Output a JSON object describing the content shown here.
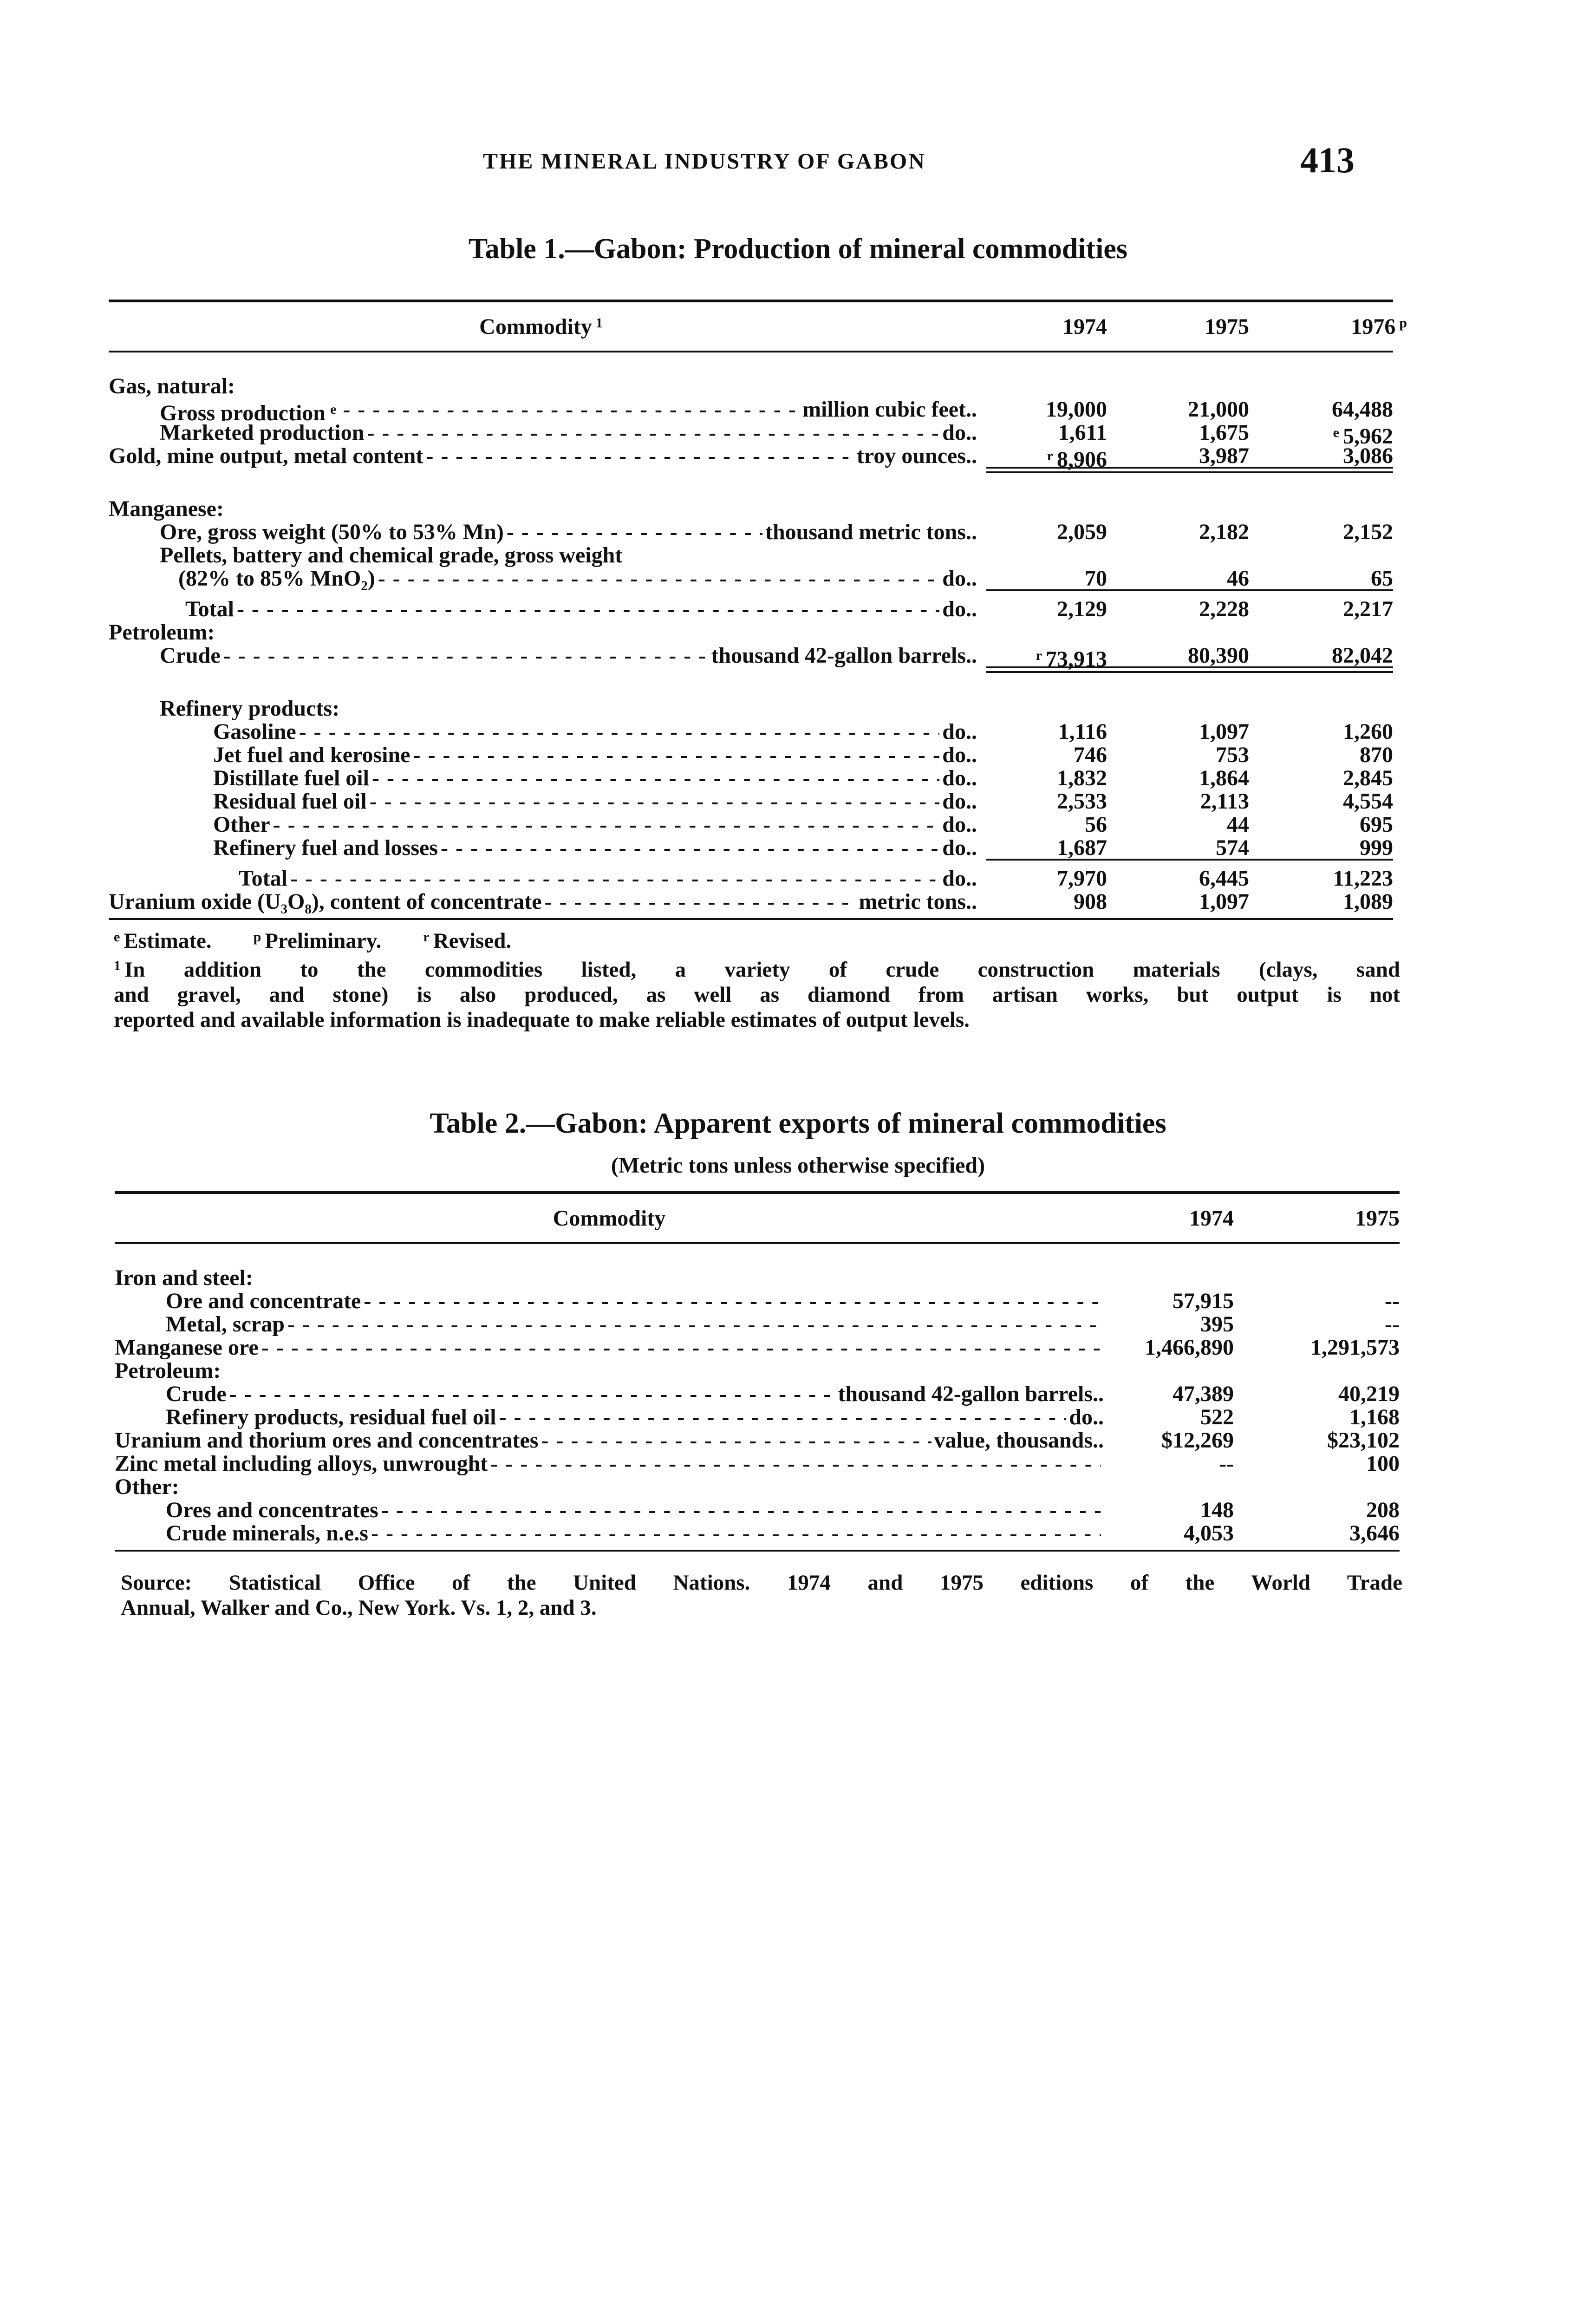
{
  "page": {
    "running_title": "THE MINERAL INDUSTRY OF GABON",
    "page_number": "413"
  },
  "table1": {
    "title": "Table 1.—Gabon:  Production of mineral commodities",
    "header": {
      "commodity": "Commodity",
      "commodity_sup": "1",
      "years": [
        "1974",
        "1975",
        "1976"
      ],
      "year_sups": [
        "",
        "",
        "p"
      ]
    },
    "groups": [
      {
        "rows": [
          {
            "label": "Gas, natural:",
            "indent": 0
          },
          {
            "label": "Gross production",
            "label_sup": "e",
            "indent": 1,
            "unit": "million cubic feet",
            "values": [
              "19,000",
              "21,000",
              "64,488"
            ]
          },
          {
            "label": "Marketed production",
            "indent": 1,
            "unit": "do",
            "values": [
              "1,611",
              "1,675",
              "e 5,962"
            ]
          },
          {
            "label": "Gold, mine output, metal content",
            "indent": 0,
            "unit": "troy ounces",
            "values": [
              "r 8,906",
              "3,987",
              "3,086"
            ],
            "rule": "double"
          }
        ]
      },
      {
        "rows": [
          {
            "label": "Manganese:",
            "indent": 0
          },
          {
            "label": "Ore, gross weight (50% to 53% Mn)",
            "indent": 1,
            "unit": "thousand metric tons",
            "values": [
              "2,059",
              "2,182",
              "2,152"
            ]
          },
          {
            "label": "Pellets, battery and chemical grade, gross weight",
            "indent": 1
          },
          {
            "label": "(82% to 85% MnO₂)",
            "indent": 2,
            "unit": "do",
            "values": [
              "70",
              "46",
              "65"
            ],
            "rule": "single"
          },
          {
            "label": "Total",
            "indent": 3,
            "unit": "do",
            "values": [
              "2,129",
              "2,228",
              "2,217"
            ]
          },
          {
            "label": "Petroleum:",
            "indent": 0
          },
          {
            "label": "Crude",
            "indent": 1,
            "unit": "thousand 42-gallon barrels",
            "values": [
              "r 73,913",
              "80,390",
              "82,042"
            ],
            "rule": "double"
          }
        ]
      },
      {
        "rows": [
          {
            "label": "Refinery products:",
            "indent": 1
          },
          {
            "label": "Gasoline",
            "indent": 4,
            "unit": "do",
            "values": [
              "1,116",
              "1,097",
              "1,260"
            ]
          },
          {
            "label": "Jet fuel and kerosine",
            "indent": 4,
            "unit": "do",
            "values": [
              "746",
              "753",
              "870"
            ]
          },
          {
            "label": "Distillate fuel oil",
            "indent": 4,
            "unit": "do",
            "values": [
              "1,832",
              "1,864",
              "2,845"
            ]
          },
          {
            "label": "Residual fuel oil",
            "indent": 4,
            "unit": "do",
            "values": [
              "2,533",
              "2,113",
              "4,554"
            ]
          },
          {
            "label": "Other",
            "indent": 4,
            "unit": "do",
            "values": [
              "56",
              "44",
              "695"
            ]
          },
          {
            "label": "Refinery fuel and losses",
            "indent": 4,
            "unit": "do",
            "values": [
              "1,687",
              "574",
              "999"
            ],
            "rule": "single"
          },
          {
            "label": "Total",
            "indent": 5,
            "unit": "do",
            "values": [
              "7,970",
              "6,445",
              "11,223"
            ]
          },
          {
            "label": "Uranium oxide (U₃O₈), content of concentrate",
            "indent": 0,
            "unit": "metric tons",
            "values": [
              "908",
              "1,097",
              "1,089"
            ]
          }
        ]
      }
    ],
    "footnotes": {
      "legend": [
        {
          "sup": "e",
          "text": "Estimate."
        },
        {
          "sup": "p",
          "text": "Preliminary."
        },
        {
          "sup": "r",
          "text": "Revised."
        }
      ],
      "note_sup": "1",
      "note_line1": "In addition to the commodities listed, a variety of crude construction materials (clays, sand",
      "note_line2": "and gravel, and stone) is also produced, as well as diamond from artisan works, but output is not",
      "note_line3": "reported and available information is inadequate to make reliable estimates of output levels."
    }
  },
  "table2": {
    "title": "Table 2.—Gabon:  Apparent exports of mineral commodities",
    "subtitle": "(Metric tons unless otherwise specified)",
    "header": {
      "commodity": "Commodity",
      "years": [
        "1974",
        "1975"
      ]
    },
    "groups": [
      {
        "rows": [
          {
            "label": "Iron and steel:",
            "indent": 0
          },
          {
            "label": "Ore and concentrate",
            "indent": 1,
            "values": [
              "57,915",
              "--"
            ]
          },
          {
            "label": "Metal, scrap",
            "indent": 1,
            "values": [
              "395",
              "--"
            ]
          },
          {
            "label": "Manganese ore",
            "indent": 0,
            "values": [
              "1,466,890",
              "1,291,573"
            ]
          },
          {
            "label": "Petroleum:",
            "indent": 0
          },
          {
            "label": "Crude",
            "indent": 1,
            "unit": "thousand 42-gallon barrels",
            "values": [
              "47,389",
              "40,219"
            ]
          },
          {
            "label": "Refinery products, residual fuel oil",
            "indent": 1,
            "unit": "do",
            "values": [
              "522",
              "1,168"
            ]
          },
          {
            "label": "Uranium and thorium ores and concentrates",
            "indent": 0,
            "unit": "value, thousands",
            "values": [
              "$12,269",
              "$23,102"
            ]
          },
          {
            "label": "Zinc metal including alloys, unwrought",
            "indent": 0,
            "values": [
              "--",
              "100"
            ]
          },
          {
            "label": "Other:",
            "indent": 0
          },
          {
            "label": "Ores and concentrates",
            "indent": 1,
            "values": [
              "148",
              "208"
            ]
          },
          {
            "label": "Crude minerals, n.e.s",
            "indent": 1,
            "values": [
              "4,053",
              "3,646"
            ]
          }
        ]
      }
    ],
    "source_line1": "Source: Statistical Office of the United Nations. 1974 and 1975 editions of the World Trade",
    "source_line2": "Annual, Walker and Co., New York. Vs. 1, 2, and 3."
  }
}
